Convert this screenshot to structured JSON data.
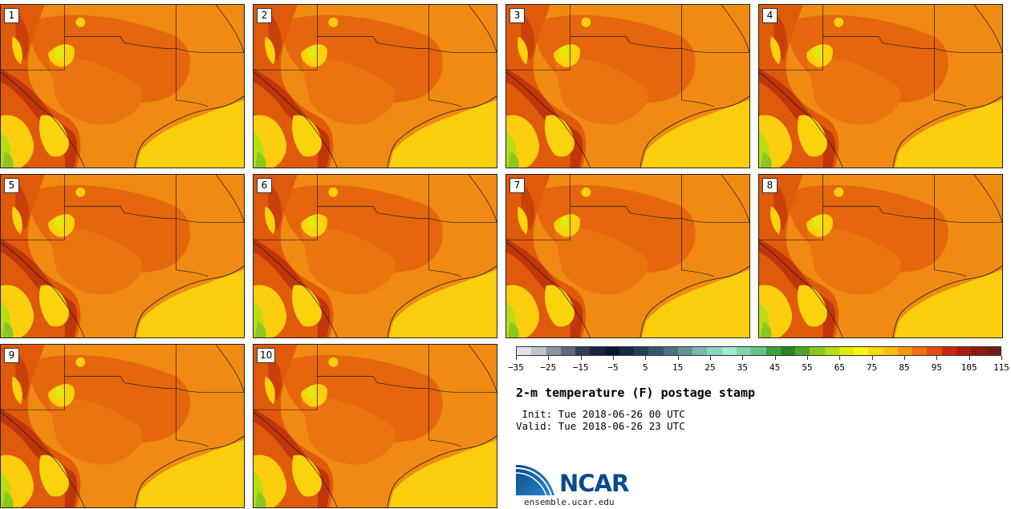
{
  "members": [
    "1",
    "2",
    "3",
    "4",
    "5",
    "6",
    "7",
    "8",
    "9",
    "10"
  ],
  "colorbar": {
    "colors": [
      "#dfe2ea",
      "#bec3cc",
      "#8d93a0",
      "#606a7b",
      "#323e55",
      "#1b2540",
      "#0b1830",
      "#142a42",
      "#253f55",
      "#37566a",
      "#4a7180",
      "#629298",
      "#7bb6b0",
      "#8cd4c5",
      "#a2e6d4",
      "#85d2ab",
      "#64c286",
      "#3f9e3d",
      "#2a8526",
      "#55a42a",
      "#8cc621",
      "#b8dc15",
      "#dced0d",
      "#f5f60a",
      "#fbd90c",
      "#fcbf10",
      "#f99511",
      "#f36e0e",
      "#e24c0c",
      "#c8280c",
      "#ab1d10",
      "#8c1a10",
      "#6e1d18"
    ],
    "ticks": [
      "−35",
      "−25",
      "−15",
      "−5",
      "5",
      "15",
      "25",
      "35",
      "45",
      "55",
      "65",
      "75",
      "85",
      "95",
      "105",
      "115"
    ]
  },
  "title": "2-m temperature (F) postage stamp",
  "init_label": " Init: Tue 2018-06-26 00 UTC",
  "valid_label": "Valid: Tue 2018-06-26 23 UTC",
  "logo_text": "NCAR",
  "website": "ensemble.ucar.edu"
}
